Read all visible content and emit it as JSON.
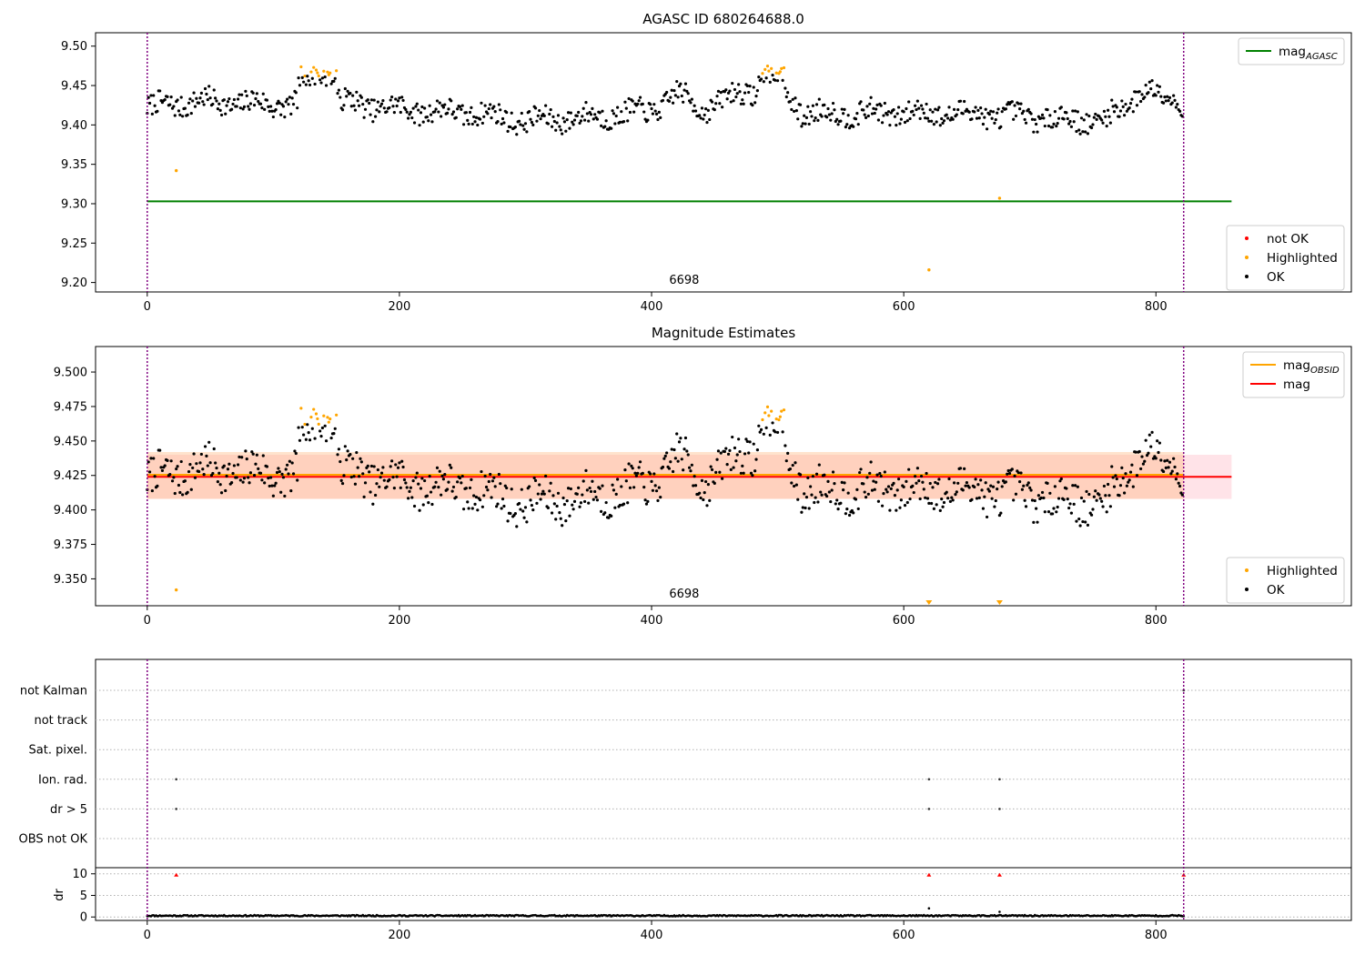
{
  "chart_data": [
    {
      "type": "scatter",
      "title": "AGASC ID 680264688.0",
      "xlim": [
        -41,
        955
      ],
      "ylim": [
        9.188,
        9.517
      ],
      "xticks": [
        0,
        200,
        400,
        600,
        800
      ],
      "yticks": [
        9.2,
        9.25,
        9.3,
        9.35,
        9.4,
        9.45,
        9.5
      ],
      "ytick_labels": [
        "9.20",
        "9.25",
        "9.30",
        "9.35",
        "9.40",
        "9.45",
        "9.50"
      ],
      "obsid_label": {
        "text": "6698",
        "x": 410
      },
      "vlines": [
        0,
        822
      ],
      "hlines": [
        {
          "name": "mag_AGASC",
          "y": 9.303,
          "x0": 0,
          "x1": 860,
          "color": "#008000"
        }
      ],
      "series_styles": {
        "OK": "#000000",
        "Highlighted": "#ffa500",
        "not OK": "#ff0000"
      },
      "n_points": 822,
      "baseline_segments": [
        [
          0,
          9.422
        ],
        [
          40,
          9.43
        ],
        [
          120,
          9.425
        ],
        [
          150,
          9.43
        ],
        [
          200,
          9.42
        ],
        [
          260,
          9.415
        ],
        [
          300,
          9.405
        ],
        [
          350,
          9.41
        ],
        [
          400,
          9.418
        ],
        [
          420,
          9.44
        ],
        [
          440,
          9.42
        ],
        [
          470,
          9.44
        ],
        [
          500,
          9.45
        ],
        [
          520,
          9.415
        ],
        [
          600,
          9.415
        ],
        [
          650,
          9.415
        ],
        [
          700,
          9.41
        ],
        [
          760,
          9.405
        ],
        [
          790,
          9.445
        ],
        [
          822,
          9.43
        ]
      ],
      "highlight_ranges": [
        [
          120,
          150,
          9.468
        ],
        [
          485,
          505,
          9.47
        ]
      ],
      "outliers": [
        {
          "x": 23,
          "y": 9.342,
          "series": "Highlighted"
        },
        {
          "x": 620,
          "y": 9.216,
          "series": "Highlighted"
        },
        {
          "x": 676,
          "y": 9.307,
          "series": "Highlighted"
        }
      ],
      "legends": [
        {
          "position": "top-right",
          "entries": [
            {
              "label": "mag",
              "subscript": "AGASC",
              "color": "#008000",
              "kind": "line"
            }
          ]
        },
        {
          "position": "lower-right",
          "entries": [
            {
              "label": "not OK",
              "color": "#ff0000",
              "kind": "dot"
            },
            {
              "label": "Highlighted",
              "color": "#ffa500",
              "kind": "dot"
            },
            {
              "label": "OK",
              "color": "#000000",
              "kind": "dot"
            }
          ]
        }
      ]
    },
    {
      "type": "scatter",
      "title": "Magnitude Estimates",
      "xlim": [
        -41,
        955
      ],
      "ylim": [
        9.3305,
        9.5185
      ],
      "xticks": [
        0,
        200,
        400,
        600,
        800
      ],
      "yticks": [
        9.35,
        9.375,
        9.4,
        9.425,
        9.45,
        9.475,
        9.5
      ],
      "ytick_labels": [
        "9.350",
        "9.375",
        "9.400",
        "9.425",
        "9.450",
        "9.475",
        "9.500"
      ],
      "obsid_label": {
        "text": "6698",
        "x": 410
      },
      "vlines": [
        0,
        822
      ],
      "bands": [
        {
          "y0": 9.408,
          "y1": 9.44,
          "x0": 0,
          "x1": 860,
          "color": "#ffc0cb",
          "opacity": 0.45
        },
        {
          "y0": 9.408,
          "y1": 9.442,
          "x0": 0,
          "x1": 822,
          "color": "#ffb070",
          "opacity": 0.35
        }
      ],
      "hlines": [
        {
          "name": "mag_OBSID",
          "y": 9.4255,
          "x0": 0,
          "x1": 822,
          "color": "#ffa500"
        },
        {
          "name": "mag",
          "y": 9.424,
          "x0": 0,
          "x1": 860,
          "color": "#ff0000"
        }
      ],
      "offscale_markers": [
        {
          "x": 620
        },
        {
          "x": 676
        }
      ],
      "legends": [
        {
          "position": "top-right",
          "entries": [
            {
              "label": "mag",
              "subscript": "OBSID",
              "color": "#ffa500",
              "kind": "line"
            },
            {
              "label": "mag",
              "subscript": "",
              "color": "#ff0000",
              "kind": "line"
            }
          ]
        },
        {
          "position": "lower-right",
          "entries": [
            {
              "label": "Highlighted",
              "color": "#ffa500",
              "kind": "dot"
            },
            {
              "label": "OK",
              "color": "#000000",
              "kind": "dot"
            }
          ]
        }
      ]
    },
    {
      "type": "scatter",
      "title": "",
      "xlim": [
        -41,
        955
      ],
      "flag_rows": [
        "not Kalman",
        "not track",
        "Sat. pixel.",
        "Ion. rad.",
        "dr > 5",
        "OBS not OK"
      ],
      "flag_points": [
        {
          "row": "Ion. rad.",
          "x": [
            23,
            620,
            676
          ]
        },
        {
          "row": "dr > 5",
          "x": [
            23,
            620,
            676
          ]
        },
        {
          "row": "not Kalman",
          "x": [
            822
          ]
        }
      ],
      "dr_axis": {
        "ylabel": "dr",
        "yticks": [
          0,
          5,
          10
        ],
        "ylim": [
          -0.8,
          11
        ]
      },
      "dr_values_typical": 0.3,
      "dr_spikes": [
        {
          "x": 620,
          "y": 2.0
        },
        {
          "x": 676,
          "y": 1.2
        }
      ],
      "dr_high_points": [
        {
          "x": 23,
          "y": 9.8
        },
        {
          "x": 620,
          "y": 9.8
        },
        {
          "x": 676,
          "y": 9.8
        },
        {
          "x": 822,
          "y": 9.8
        }
      ],
      "xticks": [
        0,
        200,
        400,
        600,
        800
      ],
      "vlines": [
        0,
        822
      ]
    }
  ]
}
